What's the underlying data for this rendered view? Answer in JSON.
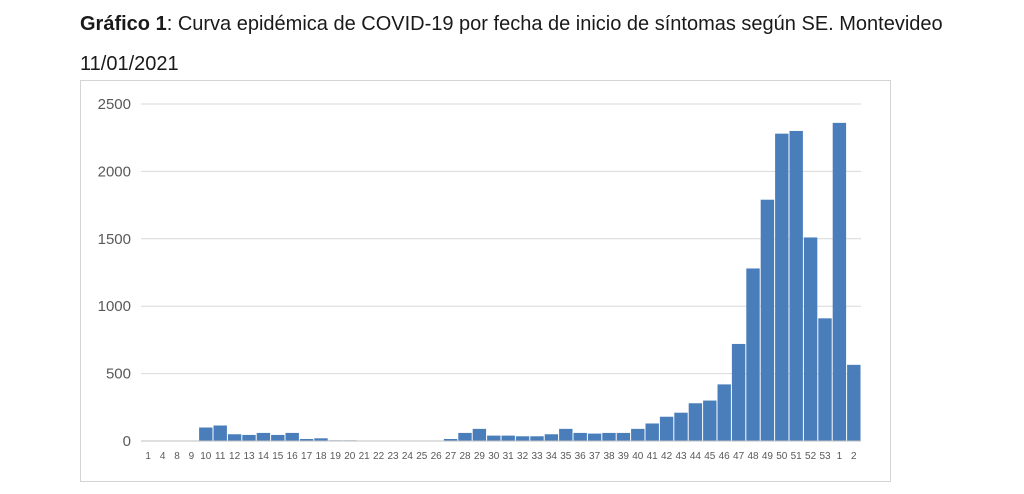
{
  "caption": {
    "label": "Gráfico 1",
    "text": ": Curva epidémica de COVID-19 por fecha de inicio de síntomas según SE. Montevideo 11/01/2021"
  },
  "colors": {
    "bar": "#4a7ebb",
    "grid": "#d9d9d9",
    "axis": "#bfbfbf"
  },
  "chart_data": {
    "type": "bar",
    "title": "Curva epidémica de COVID-19 por fecha de inicio de síntomas según SE. Montevideo 11/01/2021",
    "xlabel": "",
    "ylabel": "",
    "ylim": [
      0,
      2500
    ],
    "yticks": [
      0,
      500,
      1000,
      1500,
      2000,
      2500
    ],
    "grid": true,
    "legend": "none",
    "categories": [
      "1",
      "4",
      "8",
      "9",
      "10",
      "11",
      "12",
      "13",
      "14",
      "15",
      "16",
      "17",
      "18",
      "19",
      "20",
      "21",
      "22",
      "23",
      "24",
      "25",
      "26",
      "27",
      "28",
      "29",
      "30",
      "31",
      "32",
      "33",
      "34",
      "35",
      "36",
      "37",
      "38",
      "39",
      "40",
      "41",
      "42",
      "43",
      "44",
      "45",
      "46",
      "47",
      "48",
      "49",
      "50",
      "51",
      "52",
      "53",
      "1",
      "2"
    ],
    "values": [
      0,
      0,
      0,
      0,
      100,
      115,
      50,
      45,
      60,
      45,
      60,
      15,
      20,
      5,
      5,
      3,
      0,
      0,
      0,
      3,
      0,
      15,
      60,
      90,
      40,
      40,
      35,
      35,
      50,
      90,
      60,
      55,
      60,
      60,
      90,
      130,
      180,
      210,
      280,
      300,
      420,
      720,
      1280,
      1790,
      2280,
      2300,
      1510,
      910,
      2360,
      565
    ]
  }
}
